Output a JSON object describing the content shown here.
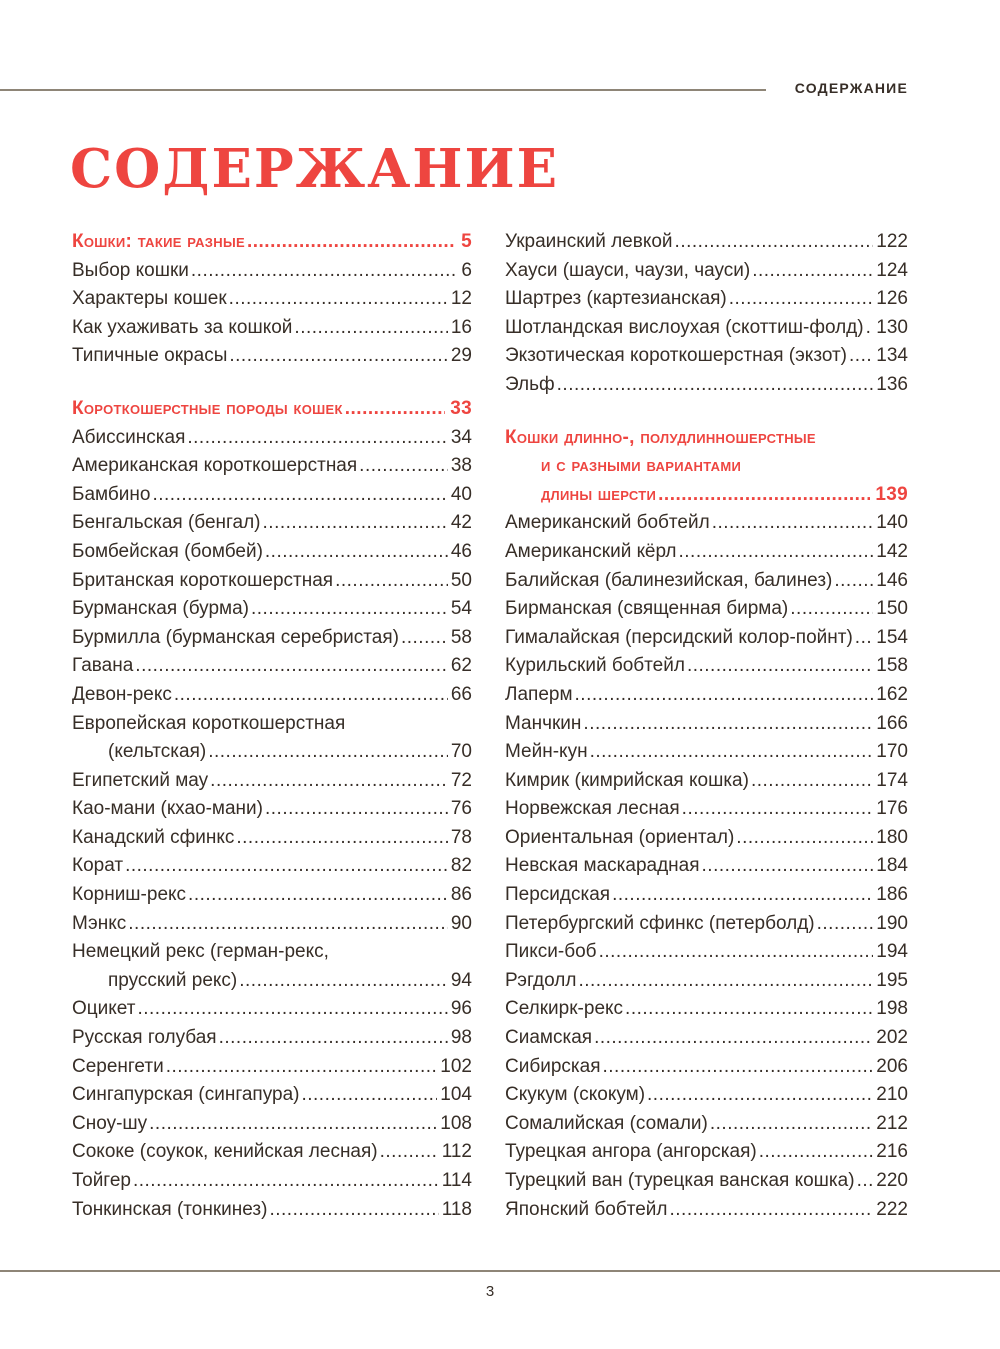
{
  "page": {
    "running_header": "СОДЕРЖАНИЕ",
    "title": "СОДЕРЖАНИЕ",
    "page_number": "3"
  },
  "colors": {
    "accent": "#ee4540",
    "text": "#372e27",
    "rule": "#8e8577"
  },
  "toc": {
    "left": [
      {
        "label": "Кошки: такие разные",
        "page": "5",
        "heading": true
      },
      {
        "label": "Выбор кошки",
        "page": "6"
      },
      {
        "label": "Характеры кошек",
        "page": "12"
      },
      {
        "label": "Как ухаживать за кошкой",
        "page": "16"
      },
      {
        "label": "Типичные окрасы",
        "page": "29"
      },
      {
        "label": "Короткошерстные породы кошек",
        "page": "33",
        "heading": true,
        "gap": true
      },
      {
        "label": "Абиссинская",
        "page": "34"
      },
      {
        "label": "Американская короткошерстная",
        "page": "38"
      },
      {
        "label": "Бамбино",
        "page": "40"
      },
      {
        "label": "Бенгальская (бенгал)",
        "page": "42"
      },
      {
        "label": "Бомбейская (бомбей)",
        "page": "46"
      },
      {
        "label": "Британская короткошерстная",
        "page": "50"
      },
      {
        "label": "Бурманская (бурма)",
        "page": "54"
      },
      {
        "label": "Бурмилла (бурманская серебристая)",
        "page": "58"
      },
      {
        "label": "Гавана",
        "page": "62"
      },
      {
        "label": "Девон-рекс",
        "page": "66"
      },
      {
        "label": "Европейская короткошерстная",
        "page": null
      },
      {
        "label": "(кельтская)",
        "page": "70",
        "indent": true
      },
      {
        "label": "Египетский мау",
        "page": "72"
      },
      {
        "label": "Као-мани (кхао-мани)",
        "page": "76"
      },
      {
        "label": "Канадский сфинкс",
        "page": "78"
      },
      {
        "label": "Корат",
        "page": "82"
      },
      {
        "label": "Корниш-рекс",
        "page": "86"
      },
      {
        "label": "Мэнкс",
        "page": "90"
      },
      {
        "label": "Немецкий рекс (герман-рекс,",
        "page": null
      },
      {
        "label": "прусский рекс)",
        "page": "94",
        "indent": true
      },
      {
        "label": "Оцикет",
        "page": "96"
      },
      {
        "label": "Русская голубая",
        "page": "98"
      },
      {
        "label": "Серенгети",
        "page": "102"
      },
      {
        "label": "Сингапурская (сингапура)",
        "page": "104"
      },
      {
        "label": "Сноу-шу",
        "page": "108"
      },
      {
        "label": "Сококе (соукок, кенийская лесная)",
        "page": "112"
      },
      {
        "label": "Тойгер",
        "page": "114"
      },
      {
        "label": "Тонкинская (тонкинез)",
        "page": "118"
      }
    ],
    "right": [
      {
        "label": "Украинский левкой",
        "page": "122"
      },
      {
        "label": "Хауси (шауси, чаузи, чауси)",
        "page": "124"
      },
      {
        "label": "Шартрез (картезианская)",
        "page": "126"
      },
      {
        "label": "Шотландская вислоухая (скоттиш-фолд)",
        "page": "130"
      },
      {
        "label": "Экзотическая короткошерстная (экзот)",
        "page": "134"
      },
      {
        "label": "Эльф",
        "page": "136"
      },
      {
        "label": "Кошки длинно-, полудлинношерстные",
        "page": null,
        "heading": true,
        "gap": true
      },
      {
        "label": "и с разными вариантами",
        "page": null,
        "heading": true,
        "indent": true
      },
      {
        "label": "длины шерсти",
        "page": "139",
        "heading": true,
        "indent": true
      },
      {
        "label": "Американский бобтейл",
        "page": "140"
      },
      {
        "label": "Американский кёрл",
        "page": "142"
      },
      {
        "label": "Балийская (балинезийская, балинез)",
        "page": "146"
      },
      {
        "label": "Бирманская (священная бирма)",
        "page": "150"
      },
      {
        "label": "Гималайская (персидский колор-пойнт)",
        "page": "154"
      },
      {
        "label": "Курильский бобтейл",
        "page": "158"
      },
      {
        "label": "Лаперм",
        "page": "162"
      },
      {
        "label": "Манчкин",
        "page": "166"
      },
      {
        "label": "Мейн-кун",
        "page": "170"
      },
      {
        "label": "Кимрик (кимрийская кошка)",
        "page": "174"
      },
      {
        "label": "Норвежская лесная",
        "page": "176"
      },
      {
        "label": "Ориентальная (ориентал)",
        "page": "180"
      },
      {
        "label": "Невская маскарадная",
        "page": "184"
      },
      {
        "label": "Персидская",
        "page": "186"
      },
      {
        "label": "Петербургский сфинкс (петерболд)",
        "page": "190"
      },
      {
        "label": "Пикси-боб",
        "page": "194"
      },
      {
        "label": "Рэгдолл",
        "page": "195"
      },
      {
        "label": "Селкирк-рекс",
        "page": "198"
      },
      {
        "label": "Сиамская",
        "page": "202"
      },
      {
        "label": "Сибирская",
        "page": "206"
      },
      {
        "label": "Скукум (скокум)",
        "page": "210"
      },
      {
        "label": "Сомалийская (сомали)",
        "page": "212"
      },
      {
        "label": "Турецкая ангора (ангорская)",
        "page": "216"
      },
      {
        "label": "Турецкий ван (турецкая ванская кошка)",
        "page": "220"
      },
      {
        "label": "Японский бобтейл",
        "page": "222"
      }
    ]
  }
}
